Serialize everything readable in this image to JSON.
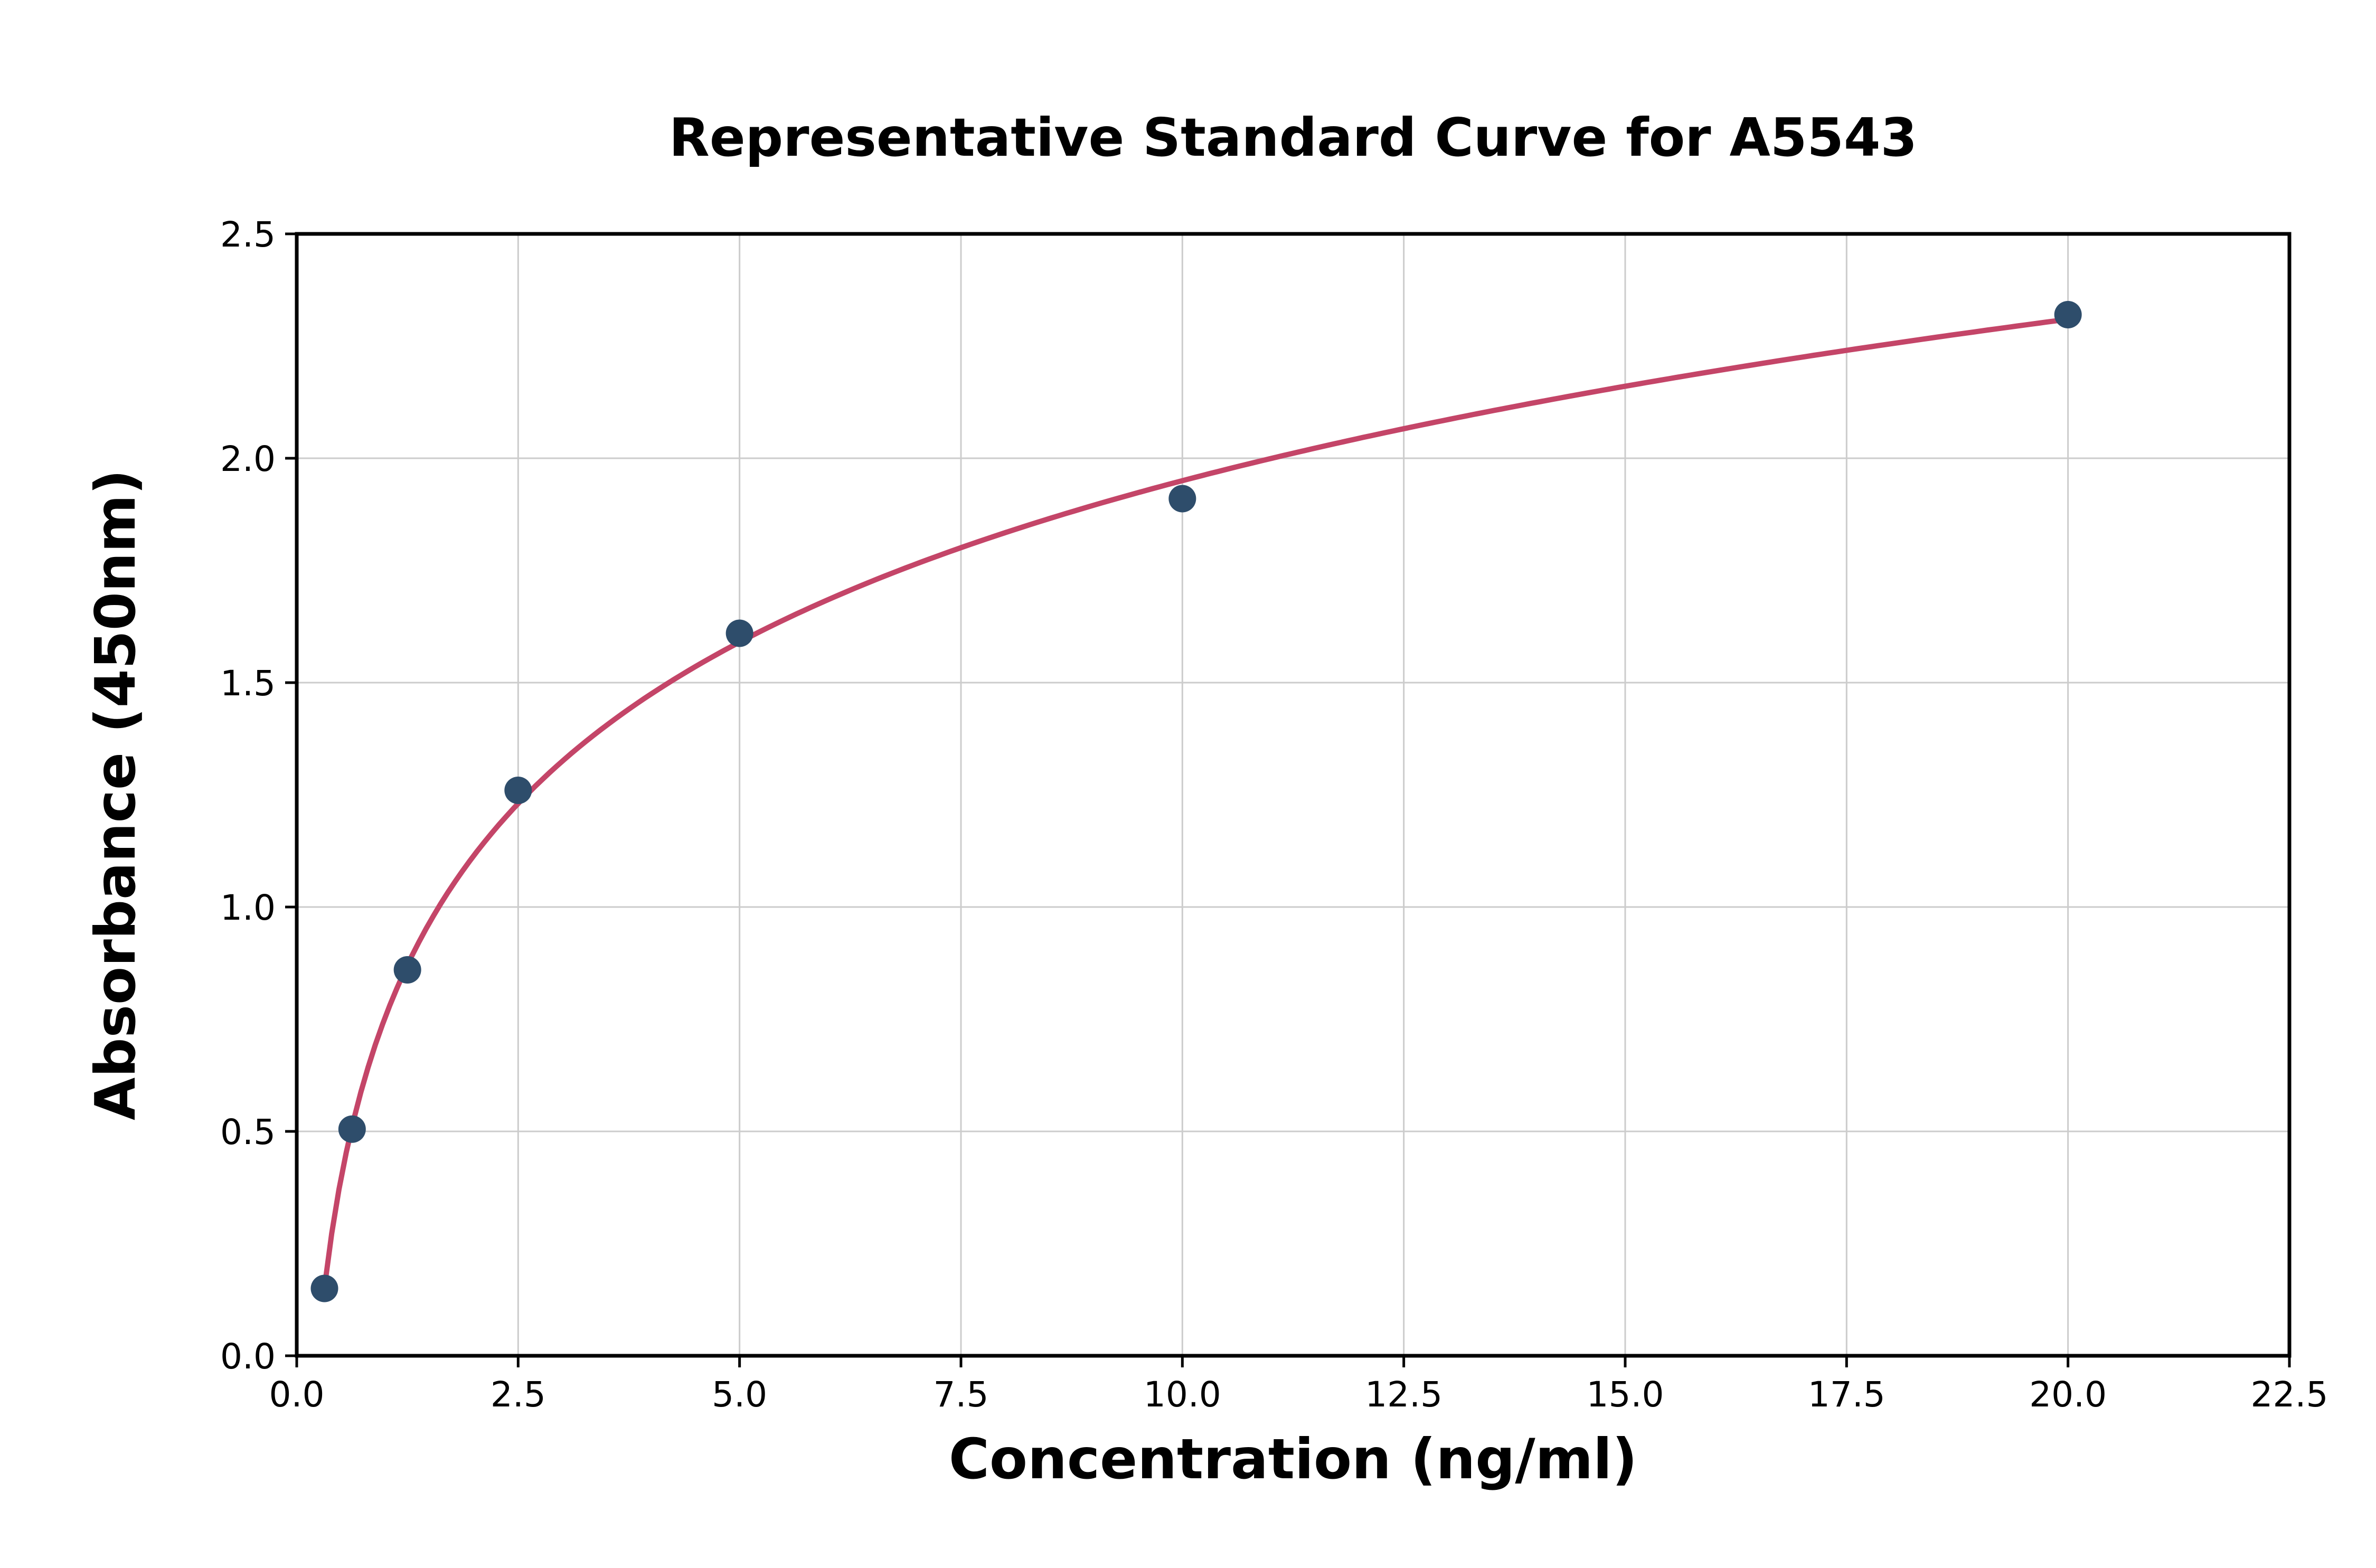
{
  "chart_data": {
    "type": "scatter",
    "title": "Representative Standard Curve for A5543",
    "xlabel": "Concentration (ng/ml)",
    "ylabel": "Absorbance (450nm)",
    "points": {
      "x": [
        0.313,
        0.625,
        1.25,
        2.5,
        5.0,
        10.0,
        20.0
      ],
      "y": [
        0.15,
        0.505,
        0.86,
        1.26,
        1.61,
        1.91,
        2.32
      ]
    },
    "fit_curve": {
      "model": "logarithmic",
      "formula": "y = a*ln(x) + b",
      "a": 0.519,
      "b": 0.755,
      "x_start": 0.313,
      "x_end": 20.0
    },
    "xlim": [
      0,
      22.5
    ],
    "ylim": [
      0,
      2.5
    ],
    "xticks": [
      0.0,
      2.5,
      5.0,
      7.5,
      10.0,
      12.5,
      15.0,
      17.5,
      20.0,
      22.5
    ],
    "yticks": [
      0.0,
      0.5,
      1.0,
      1.5,
      2.0,
      2.5
    ],
    "xtick_labels": [
      "0.0",
      "2.5",
      "5.0",
      "7.5",
      "10.0",
      "12.5",
      "15.0",
      "17.5",
      "20.0",
      "22.5"
    ],
    "ytick_labels": [
      "0.0",
      "0.5",
      "1.0",
      "1.5",
      "2.0",
      "2.5"
    ],
    "grid": true,
    "legend_position": "none",
    "colors": {
      "point": "#2e4d6b",
      "curve": "#c44568",
      "grid": "#cccccc",
      "axis": "#000000",
      "background": "#ffffff"
    }
  }
}
